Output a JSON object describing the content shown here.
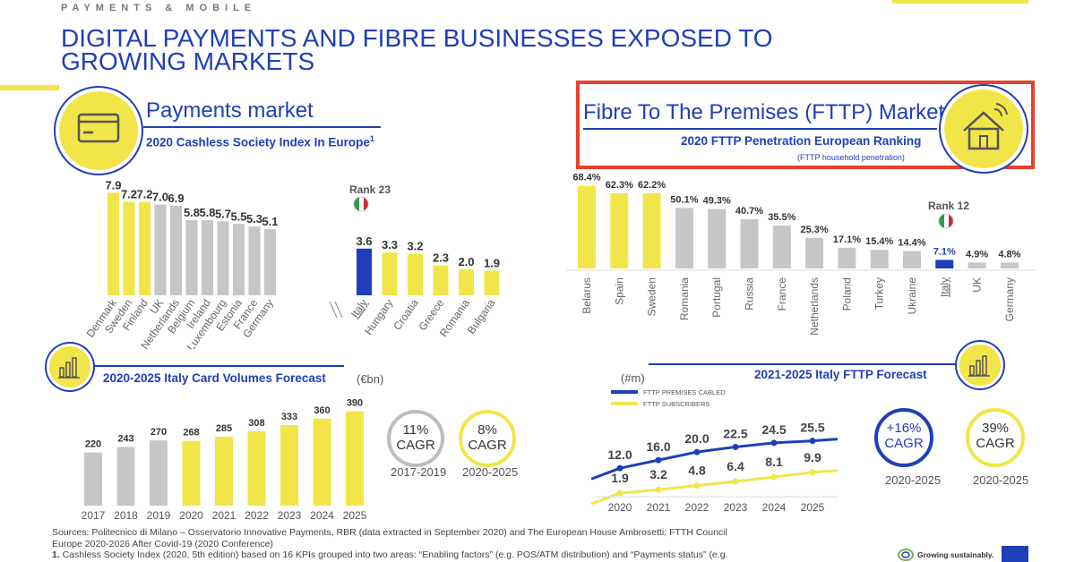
{
  "header": {
    "kicker": "PAYMENTS & MOBILE",
    "title": "DIGITAL PAYMENTS AND FIBRE BUSINESSES EXPOSED TO GROWING MARKETS"
  },
  "payments": {
    "title": "Payments market",
    "subtitle": "2020 Cashless Society Index In Europe",
    "footnote_mark": "1",
    "rank_label": "Rank 23",
    "forecast_title": "2020-2025 Italy Card Volumes Forecast",
    "forecast_unit": "(€bn)",
    "cagr1_value": "11%",
    "cagr1_label": "CAGR",
    "cagr1_period": "2017-2019",
    "cagr2_value": "8%",
    "cagr2_label": "CAGR",
    "cagr2_period": "2020-2025"
  },
  "fibre": {
    "title": "Fibre To The Premises (FTTP) Market",
    "subtitle": "2020 FTTP Penetration European Ranking",
    "subnote": "(FTTP household penetration)",
    "rank_label": "Rank 12",
    "forecast_title": "2021-2025 Italy FTTP Forecast",
    "forecast_unit": "(#m)",
    "cagr1_value": "+16%",
    "cagr1_label": "CAGR",
    "cagr1_period": "2020-2025",
    "cagr2_value": "39%",
    "cagr2_label": "CAGR",
    "cagr2_period": "2020-2025"
  },
  "sources": {
    "line1": "Sources: Politecnico di Milano – Osservatorio Innovative Payments, RBR (data extracted in September 2020) and The European House Ambrosetti; FTTH Council",
    "line2": "Europe 2020-2026 After Covid-19 (2020 Conference)",
    "line3_num": "1.",
    "line3": " Cashless Society Index (2020, 5th edition) based on 16 KPIs grouped into two areas: “Enabling factors” (e.g. POS/ATM distribution) and “Payments status” (e.g."
  },
  "brand": {
    "tagline": "Growing sustainably."
  },
  "colors": {
    "blue": "#1f3fb8",
    "yellow": "#f2e54a",
    "grey": "#c6c6c6",
    "red": "#e8412a"
  },
  "chart_data": [
    {
      "type": "bar",
      "categories": [
        "Denmark",
        "Sweden",
        "Finland",
        "UK",
        "Netherlands",
        "Belgium",
        "Ireland",
        "Luxembourg",
        "Estonia",
        "France",
        "Germany"
      ],
      "values": [
        7.9,
        7.2,
        7.2,
        7.0,
        6.9,
        5.8,
        5.8,
        5.7,
        5.5,
        5.3,
        5.1
      ],
      "value_labels": [
        "7.9",
        "7.2",
        "7.2",
        "7.0",
        "6.9",
        "5.8",
        "5.8",
        "5.7",
        "5.5",
        "5.3",
        "5.1"
      ]
    },
    {
      "type": "bar",
      "categories": [
        "Italy",
        "Hungary",
        "Croatia",
        "Greece",
        "Romania",
        "Bulgaria"
      ],
      "values": [
        3.6,
        3.3,
        3.2,
        2.3,
        2.0,
        1.9
      ],
      "value_labels": [
        "3.6",
        "3.3",
        "3.2",
        "2.3",
        "2.0",
        "1.9"
      ]
    },
    {
      "type": "bar",
      "categories": [
        "2017",
        "2018",
        "2019",
        "2020",
        "2021",
        "2022",
        "2023",
        "2024",
        "2025"
      ],
      "values": [
        220,
        243,
        270,
        268,
        285,
        308,
        333,
        360,
        390
      ]
    },
    {
      "type": "bar",
      "categories": [
        "Belarus",
        "Spain",
        "Sweden",
        "Romania",
        "Portugal",
        "Russia",
        "France",
        "Netherlands",
        "Poland",
        "Turkey",
        "Ukraine",
        "Italy",
        "UK",
        "Germany"
      ],
      "values": [
        68.4,
        62.3,
        62.2,
        50.1,
        49.3,
        40.7,
        35.5,
        25.3,
        17.1,
        15.4,
        14.4,
        7.1,
        4.9,
        4.8
      ],
      "value_labels": [
        "68.4%",
        "62.3%",
        "62.2%",
        "50.1%",
        "49.3%",
        "40.7%",
        "35.5%",
        "25.3%",
        "17.1%",
        "15.4%",
        "14.4%",
        "7.1%",
        "4.9%",
        "4.8%"
      ]
    },
    {
      "type": "line",
      "x": [
        "2020",
        "2021",
        "2022",
        "2023",
        "2024",
        "2025"
      ],
      "series": [
        {
          "name": "FTTP PREMISES CABLED",
          "values": [
            12.0,
            16.0,
            20.0,
            22.5,
            24.5,
            25.5
          ]
        },
        {
          "name": "FTTP SUBSCRIBERS",
          "values": [
            1.9,
            3.2,
            4.8,
            6.4,
            8.1,
            9.9
          ]
        }
      ]
    }
  ]
}
